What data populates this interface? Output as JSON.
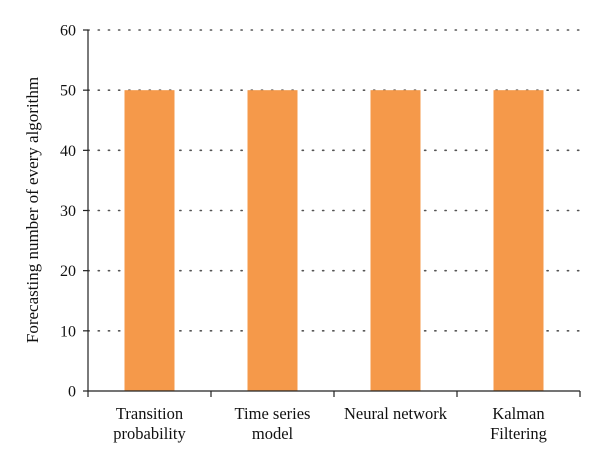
{
  "chart_data": {
    "type": "bar",
    "title": "",
    "xlabel": "",
    "ylabel": "Forecasting number of every algorithm",
    "categories": [
      [
        "Transition",
        "probability"
      ],
      [
        "Time series",
        "model"
      ],
      [
        "Neural network"
      ],
      [
        "Kalman",
        "Filtering"
      ]
    ],
    "values": [
      50,
      50,
      50,
      50
    ],
    "ylim": [
      0,
      60
    ],
    "yticks": [
      0,
      10,
      20,
      30,
      40,
      50,
      60
    ],
    "grid": "horizontal-dotted",
    "legend": "none",
    "bar_color": "#F5994A"
  }
}
